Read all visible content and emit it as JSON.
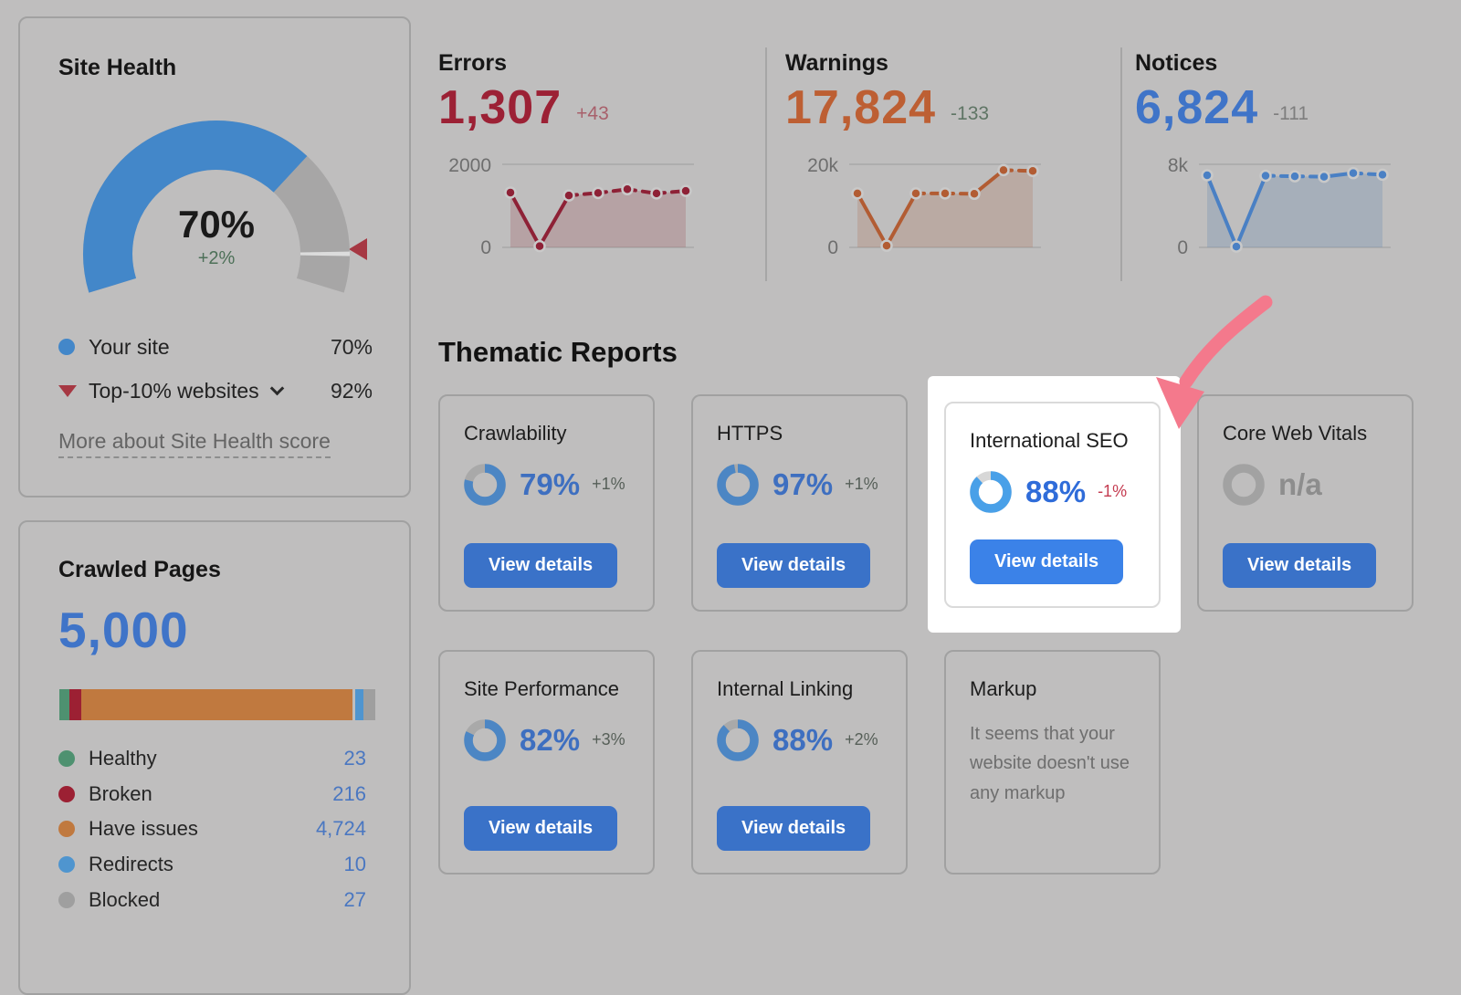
{
  "site_health": {
    "title": "Site Health",
    "score": "70%",
    "delta": "+2%",
    "delta_color": "#4d7058",
    "gauge": {
      "value": 70,
      "benchmark": 92,
      "value_color": "#4387c9",
      "track_color": "#a7a6a6",
      "notch_color": "#dcdcdc",
      "marker_color": "#a63843"
    },
    "legend": [
      {
        "label": "Your site",
        "value": "70%",
        "color": "#4387c9"
      },
      {
        "label": "Top-10% websites",
        "value": "92%",
        "color": "#a63843"
      }
    ],
    "link_label": "More about Site Health score"
  },
  "crawled_pages": {
    "title": "Crawled Pages",
    "total": "5,000",
    "total_color": "#3f74c8",
    "bar_segments": [
      {
        "label": "Healthy",
        "width_pct": 3.1,
        "color": "#4e9170"
      },
      {
        "label": "Broken",
        "width_pct": 3.9,
        "color": "#9c2033"
      },
      {
        "label": "Have issues",
        "width_pct": 86.0,
        "color": "#c0793f"
      },
      {
        "label": "Redirects",
        "width_pct": 2.7,
        "color": "#4f95cf",
        "gap_before": true
      },
      {
        "label": "Blocked",
        "width_pct": 3.6,
        "color": "#9f9f9f"
      }
    ],
    "legend": [
      {
        "label": "Healthy",
        "value": "23",
        "color": "#4e9170"
      },
      {
        "label": "Broken",
        "value": "216",
        "color": "#9c2033"
      },
      {
        "label": "Have issues",
        "value": "4,724",
        "color": "#c0793f"
      },
      {
        "label": "Redirects",
        "value": "10",
        "color": "#4f95cf"
      },
      {
        "label": "Blocked",
        "value": "27",
        "color": "#9f9f9f"
      }
    ]
  },
  "kpis": [
    {
      "title": "Errors",
      "value": "1,307",
      "delta": "+43",
      "value_color": "#9c2135",
      "delta_color": "#a8606b",
      "y_top": "2000",
      "y_bottom": "0"
    },
    {
      "title": "Warnings",
      "value": "17,824",
      "delta": "-133",
      "value_color": "#bd5f33",
      "delta_color": "#5f7565",
      "y_top": "20k",
      "y_bottom": "0"
    },
    {
      "title": "Notices",
      "value": "6,824",
      "delta": "-111",
      "value_color": "#3f74c8",
      "delta_color": "#7e7e7e",
      "y_top": "8k",
      "y_bottom": "0"
    }
  ],
  "thematic": {
    "title": "Thematic Reports",
    "view_details_label": "View details",
    "cards": [
      {
        "title": "Crawlability",
        "percent": "79%",
        "value": 79,
        "delta": "+1%",
        "pct_color": "#3e6fc0",
        "delta_color": "#565f58",
        "donut_color": "#4c86c4",
        "track_color": "#a9a9a9",
        "button_bg": "#3a72c8"
      },
      {
        "title": "HTTPS",
        "percent": "97%",
        "value": 97,
        "delta": "+1%",
        "pct_color": "#3e6fc0",
        "delta_color": "#565f58",
        "donut_color": "#4c86c4",
        "track_color": "#a9a9a9",
        "button_bg": "#3a72c8"
      },
      {
        "title": "International SEO",
        "percent": "88%",
        "value": 88,
        "delta": "-1%",
        "pct_color": "#2f6cd9",
        "delta_color": "#c43b50",
        "donut_color": "#49a0e8",
        "track_color": "#d7d7d7",
        "button_bg": "#3b82e8",
        "highlighted": true
      },
      {
        "title": "Core Web Vitals",
        "percent": "n/a",
        "value": null,
        "delta": "",
        "pct_color": "#8d8d8d",
        "delta_color": "#8d8d8d",
        "donut_color": null,
        "track_color": "#a2a2a2",
        "button_bg": "#3a72c8"
      },
      {
        "title": "Site Performance",
        "percent": "82%",
        "value": 82,
        "delta": "+3%",
        "pct_color": "#3e6fc0",
        "delta_color": "#565f58",
        "donut_color": "#4c86c4",
        "track_color": "#a9a9a9",
        "button_bg": "#3a72c8"
      },
      {
        "title": "Internal Linking",
        "percent": "88%",
        "value": 88,
        "delta": "+2%",
        "pct_color": "#3e6fc0",
        "delta_color": "#565f58",
        "donut_color": "#4c86c4",
        "track_color": "#a9a9a9",
        "button_bg": "#3a72c8"
      },
      {
        "title": "Markup",
        "message": "It seems that your website doesn't use any markup"
      }
    ]
  },
  "annotation": {
    "spotlight_color": "#ffffff",
    "arrow_color": "#f4798c"
  },
  "chart_data": [
    {
      "type": "gauge",
      "title": "Site Health",
      "value": 70,
      "max": 100,
      "benchmark": 92,
      "span_deg": 214
    },
    {
      "type": "area",
      "title": "Errors trend",
      "ylim": [
        0,
        2000
      ],
      "values": [
        1320,
        30,
        1250,
        1310,
        1400,
        1300,
        1360
      ],
      "line_color": "#8e2136",
      "fill_color": "rgba(150,62,74,0.22)",
      "solid_segments": [
        [
          0,
          2
        ]
      ],
      "grid_color": "#a9a9a9",
      "dot_halo": "#c9c9c9"
    },
    {
      "type": "area",
      "title": "Warnings trend",
      "ylim": [
        0,
        20000
      ],
      "values": [
        13000,
        400,
        13000,
        13000,
        12900,
        18600,
        18400
      ],
      "line_color": "#b25c33",
      "fill_color": "rgba(172,112,86,0.26)",
      "solid_segments": [
        [
          0,
          2
        ],
        [
          4,
          5
        ]
      ],
      "grid_color": "#a9a9a9",
      "dot_halo": "#c9c9c9"
    },
    {
      "type": "area",
      "title": "Notices trend",
      "ylim": [
        0,
        8000
      ],
      "values": [
        6950,
        80,
        6900,
        6850,
        6800,
        7150,
        7000
      ],
      "line_color": "#4a80c4",
      "fill_color": "rgba(110,142,178,0.30)",
      "solid_segments": [
        [
          0,
          2
        ],
        [
          4,
          5
        ]
      ],
      "grid_color": "#a9a9a9",
      "dot_halo": "#c9c9c9"
    },
    {
      "type": "bar",
      "title": "Crawled Pages",
      "categories": [
        "Healthy",
        "Broken",
        "Have issues",
        "Redirects",
        "Blocked"
      ],
      "values": [
        23,
        216,
        4724,
        10,
        27
      ],
      "total": 5000
    },
    {
      "type": "donut",
      "title": "Thematic Reports scores",
      "categories": [
        "Crawlability",
        "HTTPS",
        "International SEO",
        "Core Web Vitals",
        "Site Performance",
        "Internal Linking"
      ],
      "values": [
        79,
        97,
        88,
        null,
        82,
        88
      ]
    }
  ]
}
